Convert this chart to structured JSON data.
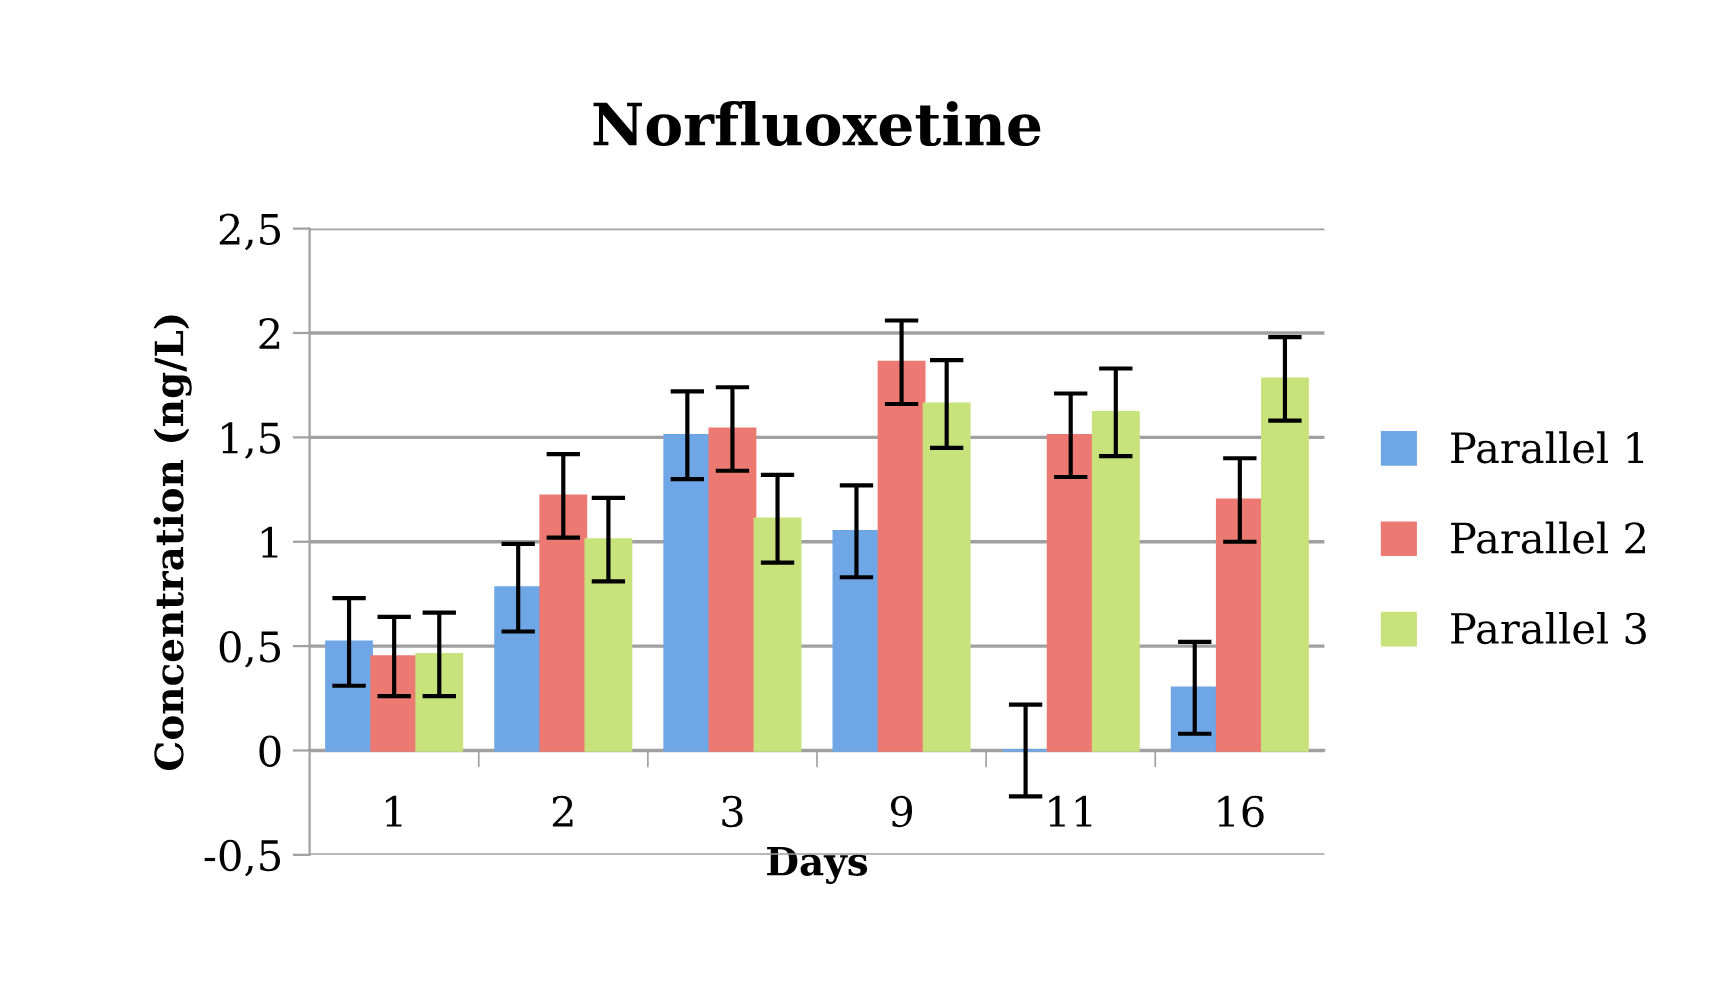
{
  "chart_data": {
    "type": "bar",
    "title": "Norfluoxetine",
    "xlabel": "Days",
    "ylabel": "Concentration (ng/L)",
    "categories": [
      "1",
      "2",
      "3",
      "9",
      "11",
      "16"
    ],
    "series": [
      {
        "name": "Parallel 1",
        "color": "#6fa6e6",
        "values": [
          0.52,
          0.78,
          1.51,
          1.05,
          0,
          0.3
        ],
        "errors": [
          0.21,
          0.21,
          0.21,
          0.22,
          0.22,
          0.22
        ]
      },
      {
        "name": "Parallel 2",
        "color": "#ec7a72",
        "values": [
          0.45,
          1.22,
          1.54,
          1.86,
          1.51,
          1.2
        ],
        "errors": [
          0.19,
          0.2,
          0.2,
          0.2,
          0.2,
          0.2
        ]
      },
      {
        "name": "Parallel 3",
        "color": "#c8e27c",
        "values": [
          0.46,
          1.01,
          1.11,
          1.66,
          1.62,
          1.78
        ],
        "errors": [
          0.2,
          0.2,
          0.21,
          0.21,
          0.21,
          0.2
        ]
      }
    ],
    "ylim": [
      -0.5,
      2.5
    ],
    "yticks": [
      {
        "value": -0.5,
        "label": "-0,5"
      },
      0,
      {
        "value": 0.5,
        "label": "0,5"
      },
      1,
      {
        "value": 1.5,
        "label": "1,5"
      },
      2,
      {
        "value": 2.5,
        "label": "2,5"
      }
    ],
    "grid": "y",
    "legend": "right"
  }
}
